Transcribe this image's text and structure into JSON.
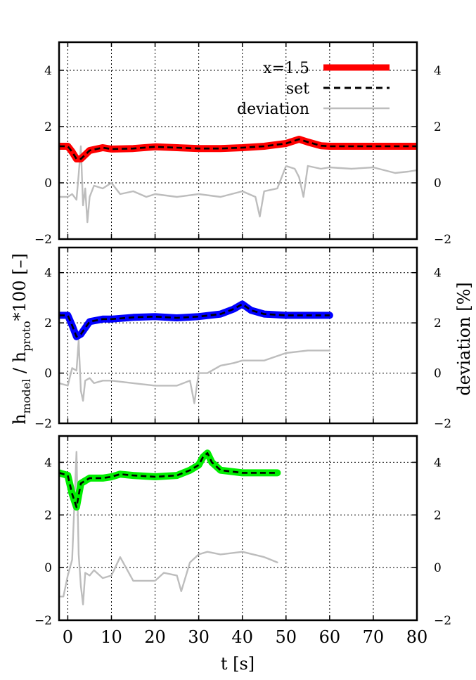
{
  "figure": {
    "ylabel_left": {
      "main": "h",
      "sub1": "model",
      "mid": " / h",
      "sub2": "proto",
      "tail": "*100 [–]"
    },
    "ylabel_right": "deviation [%]",
    "xlabel": "t [s]",
    "x_ticks": [
      "0",
      "10",
      "20",
      "30",
      "40",
      "50",
      "60",
      "70",
      "80"
    ],
    "y_ticks": [
      "−2",
      "0",
      "2",
      "4"
    ],
    "legend": [
      {
        "label": "x=1.5",
        "style": "solid-thick",
        "color": "#ff0000"
      },
      {
        "label": "set",
        "style": "dashed",
        "color": "#000000"
      },
      {
        "label": "deviation",
        "style": "solid-thin",
        "color": "#bdbdbd"
      }
    ]
  },
  "chart_data": [
    {
      "type": "line",
      "panel": "top",
      "xlim": [
        -2,
        80
      ],
      "ylim": [
        -2,
        5
      ],
      "y2lim": [
        -2,
        5
      ],
      "grid": true,
      "legend_position": "top-right",
      "series": [
        {
          "name": "x=1.5",
          "role": "model",
          "color": "#ff0000",
          "x": [
            -2,
            0,
            1,
            2,
            3,
            5,
            8,
            10,
            15,
            20,
            25,
            30,
            35,
            40,
            45,
            50,
            53,
            55,
            58,
            60,
            65,
            70,
            75,
            80
          ],
          "y": [
            1.3,
            1.3,
            1.1,
            0.85,
            0.85,
            1.15,
            1.25,
            1.2,
            1.22,
            1.28,
            1.25,
            1.22,
            1.22,
            1.25,
            1.3,
            1.4,
            1.55,
            1.45,
            1.32,
            1.3,
            1.3,
            1.3,
            1.3,
            1.3
          ]
        },
        {
          "name": "set",
          "role": "set",
          "color": "#000000",
          "x": [
            -2,
            0,
            1,
            2,
            3,
            5,
            8,
            10,
            15,
            20,
            25,
            30,
            35,
            40,
            45,
            50,
            53,
            55,
            58,
            60,
            65,
            70,
            75,
            80
          ],
          "y": [
            1.3,
            1.3,
            1.1,
            0.85,
            0.85,
            1.15,
            1.25,
            1.2,
            1.22,
            1.28,
            1.25,
            1.22,
            1.22,
            1.25,
            1.3,
            1.4,
            1.55,
            1.45,
            1.32,
            1.3,
            1.3,
            1.3,
            1.3,
            1.3
          ]
        },
        {
          "name": "deviation",
          "role": "deviation",
          "color": "#bdbdbd",
          "x": [
            -2,
            0,
            1,
            2,
            2.5,
            3,
            3.5,
            4,
            4.5,
            5,
            6,
            8,
            10,
            12,
            15,
            18,
            20,
            25,
            30,
            35,
            40,
            43,
            44,
            45,
            48,
            50,
            52,
            53,
            54,
            55,
            58,
            60,
            65,
            70,
            75,
            78,
            80
          ],
          "y": [
            -0.5,
            -0.5,
            -0.4,
            -0.6,
            0.3,
            1.3,
            -0.8,
            -0.2,
            -1.4,
            -0.5,
            -0.1,
            -0.2,
            0.0,
            -0.4,
            -0.3,
            -0.5,
            -0.4,
            -0.5,
            -0.4,
            -0.5,
            -0.3,
            -0.5,
            -1.2,
            -0.3,
            -0.2,
            0.6,
            0.5,
            0.2,
            -0.5,
            0.6,
            0.5,
            0.55,
            0.5,
            0.55,
            0.35,
            0.4,
            0.45
          ]
        }
      ]
    },
    {
      "type": "line",
      "panel": "middle",
      "xlim": [
        -2,
        80
      ],
      "ylim": [
        -2,
        5
      ],
      "y2lim": [
        -2,
        5
      ],
      "grid": true,
      "series": [
        {
          "role": "model",
          "color": "#0000ff",
          "x": [
            -2,
            0,
            1,
            2,
            3,
            5,
            8,
            10,
            15,
            20,
            25,
            30,
            35,
            38,
            40,
            42,
            45,
            50,
            55,
            60
          ],
          "y": [
            2.3,
            2.3,
            1.9,
            1.45,
            1.55,
            2.05,
            2.15,
            2.15,
            2.22,
            2.25,
            2.2,
            2.25,
            2.35,
            2.55,
            2.75,
            2.5,
            2.35,
            2.3,
            2.3,
            2.3
          ]
        },
        {
          "role": "set",
          "color": "#000000",
          "x": [
            -2,
            0,
            1,
            2,
            3,
            5,
            8,
            10,
            15,
            20,
            25,
            30,
            35,
            38,
            40,
            42,
            45,
            50,
            55,
            60
          ],
          "y": [
            2.3,
            2.3,
            1.9,
            1.45,
            1.55,
            2.05,
            2.15,
            2.15,
            2.22,
            2.25,
            2.2,
            2.25,
            2.35,
            2.55,
            2.75,
            2.5,
            2.35,
            2.3,
            2.3,
            2.3
          ]
        },
        {
          "role": "deviation",
          "color": "#bdbdbd",
          "x": [
            -2,
            0,
            1,
            2,
            2.5,
            3,
            3.5,
            4,
            5,
            6,
            8,
            10,
            15,
            20,
            25,
            28,
            29,
            30,
            32,
            35,
            38,
            40,
            45,
            50,
            55,
            60
          ],
          "y": [
            -0.4,
            -0.5,
            0.2,
            0.1,
            1.3,
            -0.7,
            -1.1,
            -0.3,
            -0.2,
            -0.4,
            -0.3,
            -0.3,
            -0.4,
            -0.5,
            -0.5,
            -0.3,
            -1.2,
            0.0,
            0.0,
            0.3,
            0.4,
            0.5,
            0.5,
            0.8,
            0.9,
            0.9
          ]
        }
      ]
    },
    {
      "type": "line",
      "panel": "bottom",
      "xlim": [
        -2,
        80
      ],
      "ylim": [
        -2,
        5
      ],
      "y2lim": [
        -2,
        5
      ],
      "grid": true,
      "series": [
        {
          "role": "model",
          "color": "#00ee00",
          "x": [
            -2,
            0,
            1,
            2,
            3,
            5,
            8,
            10,
            12,
            15,
            20,
            25,
            28,
            30,
            31,
            32,
            33,
            35,
            40,
            45,
            48
          ],
          "y": [
            3.6,
            3.5,
            2.8,
            2.3,
            3.2,
            3.4,
            3.4,
            3.45,
            3.55,
            3.5,
            3.45,
            3.5,
            3.7,
            3.9,
            4.2,
            4.35,
            4.0,
            3.7,
            3.6,
            3.6,
            3.6
          ]
        },
        {
          "role": "set",
          "color": "#000000",
          "x": [
            -2,
            0,
            1,
            2,
            3,
            5,
            8,
            10,
            12,
            15,
            20,
            25,
            28,
            30,
            31,
            32,
            33,
            35,
            40,
            45,
            48
          ],
          "y": [
            3.6,
            3.5,
            2.8,
            2.3,
            3.2,
            3.4,
            3.4,
            3.45,
            3.55,
            3.5,
            3.45,
            3.5,
            3.7,
            3.9,
            4.2,
            4.35,
            4.0,
            3.7,
            3.6,
            3.6,
            3.6
          ]
        },
        {
          "role": "deviation",
          "color": "#bdbdbd",
          "x": [
            -2,
            -1,
            0,
            1,
            2,
            2.5,
            3,
            3.5,
            4,
            5,
            6,
            8,
            10,
            12,
            13,
            15,
            20,
            22,
            25,
            26,
            28,
            30,
            32,
            35,
            40,
            45,
            48
          ],
          "y": [
            -1.1,
            -1.1,
            -0.3,
            0.3,
            4.4,
            0.5,
            -0.7,
            -1.4,
            -0.2,
            -0.3,
            -0.1,
            -0.4,
            -0.3,
            0.4,
            0.1,
            -0.5,
            -0.5,
            -0.2,
            -0.3,
            -0.9,
            0.2,
            0.5,
            0.6,
            0.5,
            0.6,
            0.4,
            0.2
          ]
        }
      ]
    }
  ]
}
